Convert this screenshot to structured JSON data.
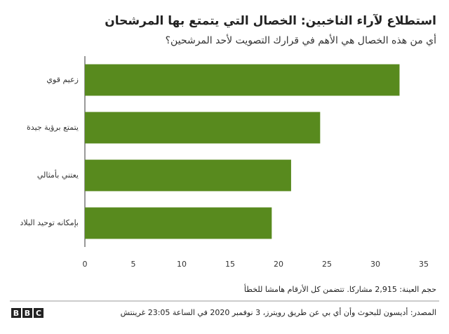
{
  "chart_data": {
    "type": "hbar",
    "title": "استطلاع لآراء الناخبين: الخصال التي يتمتع بها المرشحان",
    "subtitle": "أي من هذه الخصال هي الأهم في قرارك التصويت لأحد المرشحين؟",
    "categories": [
      "زعيم قوي",
      "يتمتع برؤية جيدة",
      "يعتني بأمثالي",
      "بإمكانه توحيد البلاد"
    ],
    "values": [
      32.5,
      24.3,
      21.3,
      19.3
    ],
    "color": "#588a1e",
    "xlim": [
      0,
      35
    ],
    "xticks": [
      0,
      5,
      10,
      15,
      20,
      25,
      30,
      35
    ],
    "note": "حجم العينة: 2,915 مشاركا. تتضمن كل الأرقام هامشا للخطأ",
    "source": "المصدر: أديسون للبحوث وأن أي بي عن طريق رويترز، 3 نوفمبر 2020 في الساعة 23:05 غرينتش",
    "logo": [
      "B",
      "B",
      "C"
    ]
  }
}
